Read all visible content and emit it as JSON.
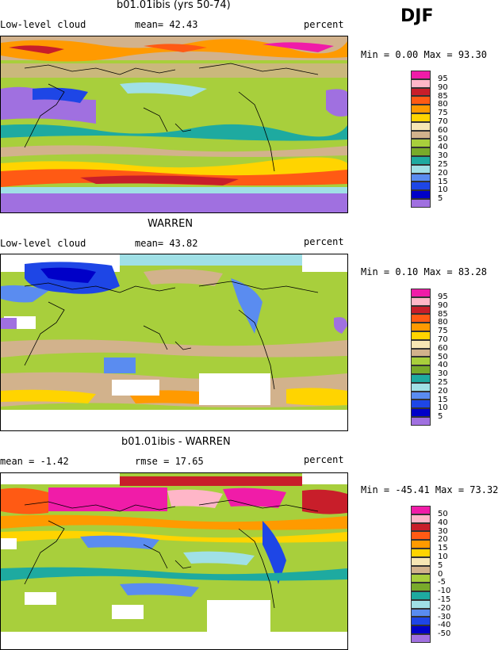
{
  "season": "DJF",
  "panels": [
    {
      "title": "b01.01ibis (yrs 50-74)",
      "left_label": "Low-level cloud",
      "mid_label": "mean=  42.43",
      "units": "percent",
      "minmax": "Min =   0.00 Max =  93.30",
      "legend": [
        "95",
        "90",
        "85",
        "80",
        "75",
        "70",
        "60",
        "50",
        "40",
        "30",
        "25",
        "20",
        "15",
        "10",
        "5"
      ]
    },
    {
      "title": "WARREN",
      "left_label": "Low-level cloud",
      "mid_label": "mean=  43.82",
      "units": "percent",
      "minmax": "Min =   0.10 Max =  83.28",
      "legend": [
        "95",
        "90",
        "85",
        "80",
        "75",
        "70",
        "60",
        "50",
        "40",
        "30",
        "25",
        "20",
        "15",
        "10",
        "5"
      ]
    },
    {
      "title": "b01.01ibis - WARREN",
      "left_label": "mean =  -1.42",
      "mid_label": "rmse =  17.65",
      "units": "percent",
      "minmax": "Min = -45.41 Max =  73.32",
      "legend": [
        "50",
        "40",
        "30",
        "20",
        "15",
        "10",
        "5",
        "0",
        "-5",
        "-10",
        "-15",
        "-20",
        "-30",
        "-40",
        "-50"
      ]
    }
  ],
  "colors": {
    "abs_scale": [
      "#f01ca8",
      "#ffb6c8",
      "#c81e2a",
      "#ff5a14",
      "#ff9a00",
      "#ffd400",
      "#f6e6b4",
      "#d2b28c",
      "#a8cf3c",
      "#78aa2a",
      "#1eaaa0",
      "#a0e0e6",
      "#5a8cf0",
      "#1e46e6",
      "#0000c8",
      "#a070e0"
    ],
    "diff_scale": [
      "#f01ca8",
      "#ffb6c8",
      "#c81e2a",
      "#ff5a14",
      "#ff9a00",
      "#ffd400",
      "#f6e6b4",
      "#d2b28c",
      "#a8cf3c",
      "#78aa2a",
      "#1eaaa0",
      "#a0e0e6",
      "#5a8cf0",
      "#1e46e6",
      "#0000c8",
      "#a070e0"
    ]
  }
}
